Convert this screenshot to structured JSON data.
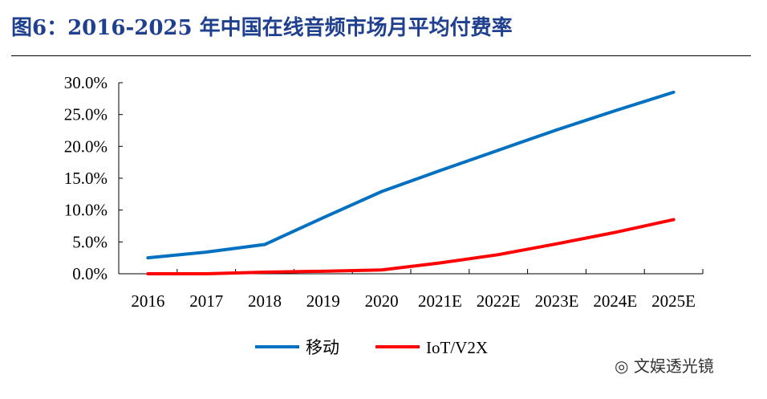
{
  "title": "图6：2016-2025 年中国在线音频市场月平均付费率",
  "watermark": "文娱透光镜",
  "chart_data": {
    "type": "line",
    "categories": [
      "2016",
      "2017",
      "2018",
      "2019",
      "2020",
      "2021E",
      "2022E",
      "2023E",
      "2024E",
      "2025E"
    ],
    "series": [
      {
        "name": "移动",
        "color": "#0070c0",
        "values": [
          2.5,
          3.4,
          4.6,
          8.8,
          12.9,
          16.2,
          19.4,
          22.6,
          25.6,
          28.5
        ]
      },
      {
        "name": "IoT/V2X",
        "color": "#ff0000",
        "values": [
          0.0,
          0.0,
          0.25,
          0.4,
          0.6,
          1.7,
          3.0,
          4.7,
          6.5,
          8.5
        ]
      }
    ],
    "yticks": [
      "0.0%",
      "5.0%",
      "10.0%",
      "15.0%",
      "20.0%",
      "25.0%",
      "30.0%"
    ],
    "ylim": [
      0,
      30
    ],
    "grid": false,
    "legend": "bottom"
  }
}
